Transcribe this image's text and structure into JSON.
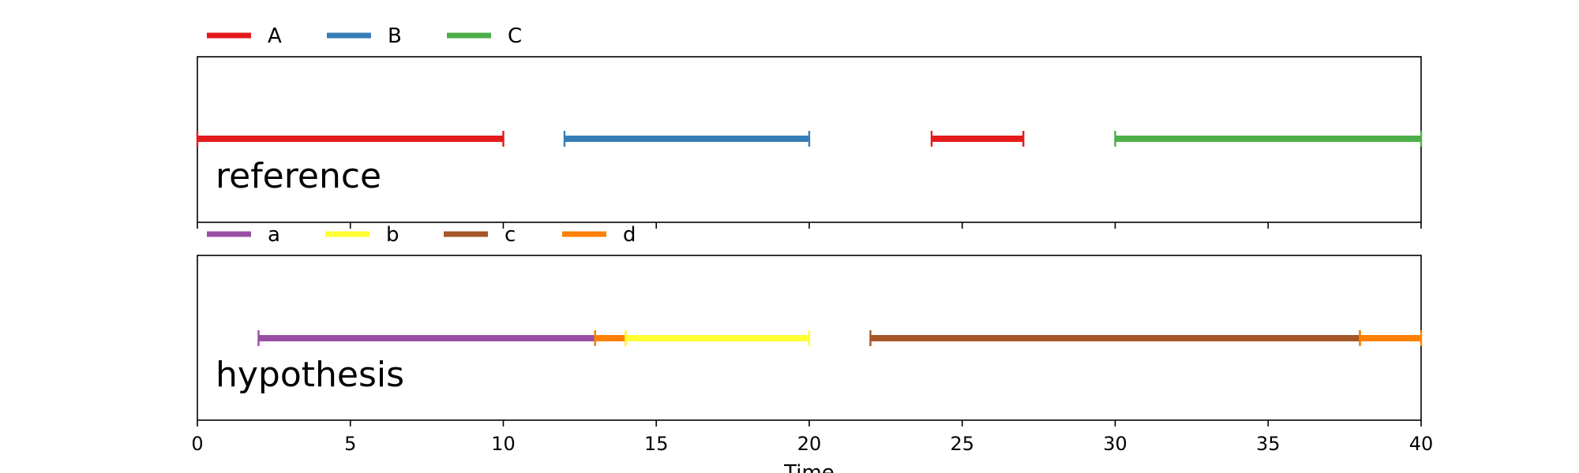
{
  "chart_data": {
    "type": "segment-timeline",
    "xlabel": "Time",
    "xlim": [
      0,
      40
    ],
    "xticks": [
      "0",
      "5",
      "10",
      "15",
      "20",
      "25",
      "30",
      "35",
      "40"
    ],
    "panels": [
      {
        "id": "reference",
        "label": "reference",
        "legend": [
          {
            "name": "A",
            "color": "#e41a1c"
          },
          {
            "name": "B",
            "color": "#377eb8"
          },
          {
            "name": "C",
            "color": "#4daf4a"
          }
        ],
        "segments": [
          {
            "label": "A",
            "start": 0,
            "end": 10
          },
          {
            "label": "B",
            "start": 12,
            "end": 20
          },
          {
            "label": "A",
            "start": 24,
            "end": 27
          },
          {
            "label": "C",
            "start": 30,
            "end": 40
          }
        ]
      },
      {
        "id": "hypothesis",
        "label": "hypothesis",
        "legend": [
          {
            "name": "a",
            "color": "#984ea3"
          },
          {
            "name": "b",
            "color": "#ffff33"
          },
          {
            "name": "c",
            "color": "#a65628"
          },
          {
            "name": "d",
            "color": "#ff7f00"
          }
        ],
        "segments": [
          {
            "label": "a",
            "start": 2,
            "end": 13
          },
          {
            "label": "d",
            "start": 13,
            "end": 14
          },
          {
            "label": "b",
            "start": 14,
            "end": 20
          },
          {
            "label": "c",
            "start": 22,
            "end": 38
          },
          {
            "label": "d",
            "start": 38,
            "end": 40
          }
        ]
      }
    ]
  }
}
